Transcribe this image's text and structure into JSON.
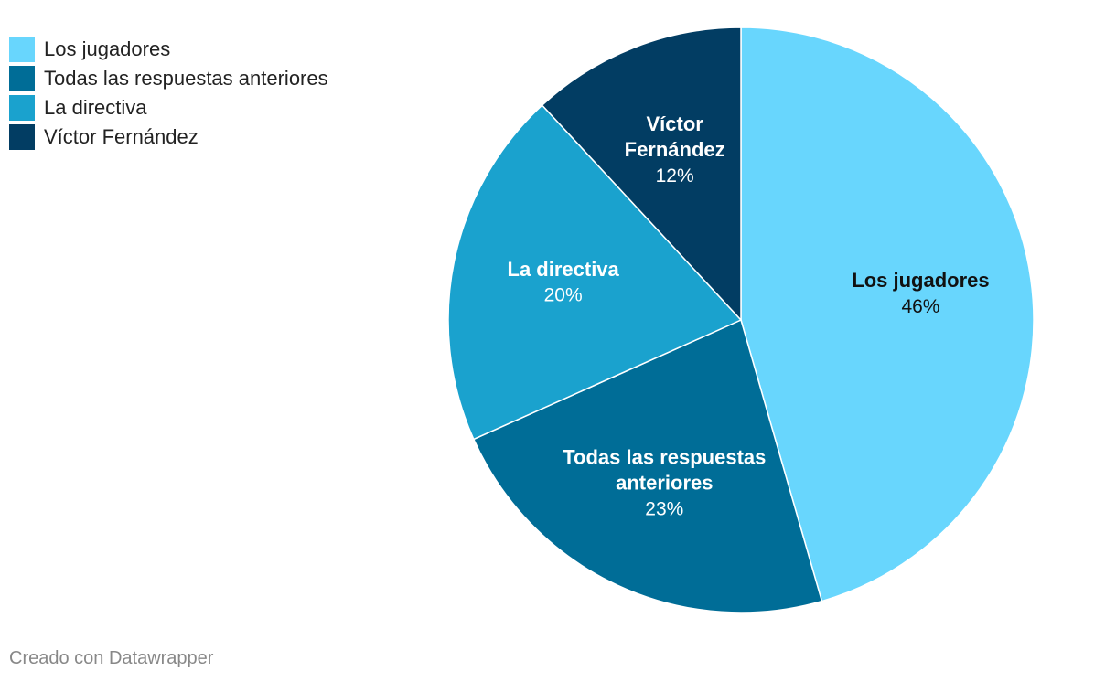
{
  "chart_data": {
    "type": "pie",
    "categories": [
      "Los jugadores",
      "Todas las respuestas anteriores",
      "La directiva",
      "Víctor Fernández"
    ],
    "values": [
      46,
      23,
      20,
      12
    ],
    "value_labels": [
      "46%",
      "23%",
      "20%",
      "12%"
    ],
    "slice_label_lines": [
      [
        "Los jugadores"
      ],
      [
        "Todas las respuestas",
        "anteriores"
      ],
      [
        "La directiva"
      ],
      [
        "Víctor",
        "Fernández"
      ]
    ],
    "colors": [
      "#68d6fd",
      "#006d97",
      "#1aa2ce",
      "#023d63"
    ],
    "label_colors": [
      "#111111",
      "#ffffff",
      "#ffffff",
      "#ffffff"
    ],
    "start_angle": "12 o'clock",
    "direction": "clockwise",
    "legend_position": "top-left"
  },
  "legend": {
    "items": [
      {
        "label": "Los jugadores",
        "color": "#68d6fd"
      },
      {
        "label": "Todas las respuestas anteriores",
        "color": "#006d97"
      },
      {
        "label": "La directiva",
        "color": "#1aa2ce"
      },
      {
        "label": "Víctor Fernández",
        "color": "#023d63"
      }
    ]
  },
  "footer": {
    "credit": "Creado con Datawrapper"
  }
}
